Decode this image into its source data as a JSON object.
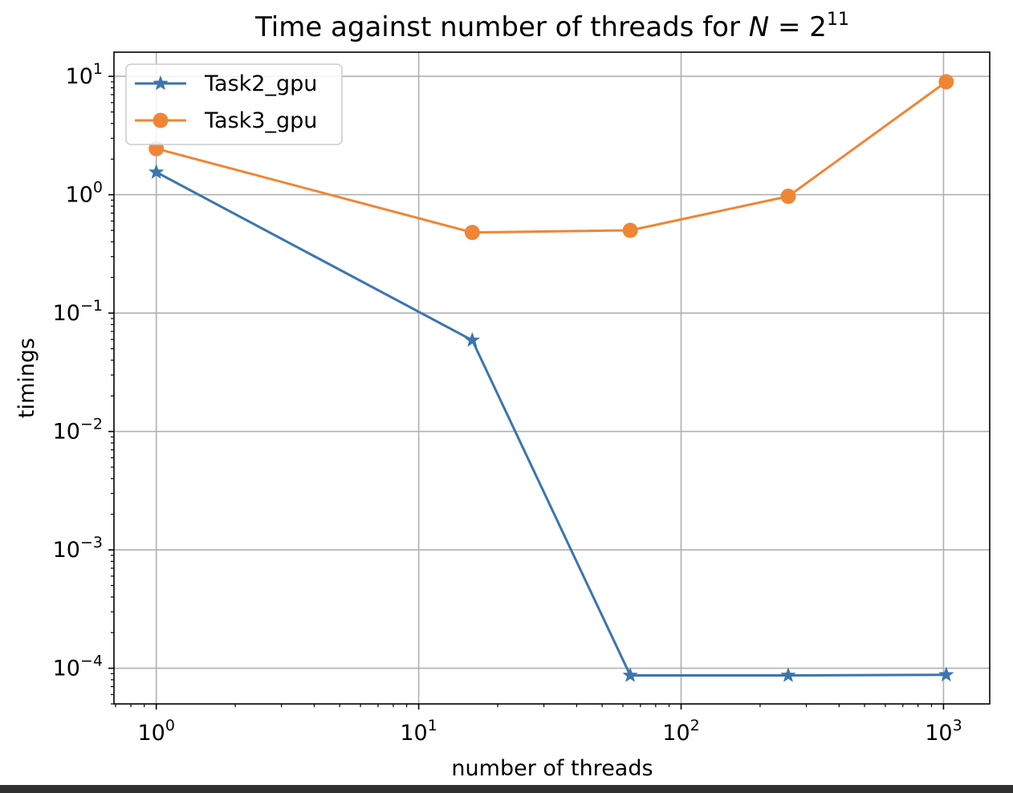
{
  "chart_data": {
    "type": "line",
    "title": "Time against number of threads for ",
    "title_math": {
      "var": "N",
      "rel": " = 2",
      "exp": "11"
    },
    "xlabel": "number of threads",
    "ylabel": "timings",
    "xscale": "log",
    "yscale": "log",
    "xlim": [
      0.69,
      1500
    ],
    "ylim": [
      5e-05,
      16
    ],
    "grid": true,
    "legend_position": "top-left",
    "x_ticks": [
      {
        "base": "10",
        "exp": "0",
        "value": 1
      },
      {
        "base": "10",
        "exp": "1",
        "value": 10
      },
      {
        "base": "10",
        "exp": "2",
        "value": 100
      },
      {
        "base": "10",
        "exp": "3",
        "value": 1000
      }
    ],
    "y_ticks": [
      {
        "base": "10",
        "exp": "1",
        "value": 10
      },
      {
        "base": "10",
        "exp": "0",
        "value": 1
      },
      {
        "base": "10",
        "exp": "−1",
        "value": 0.1
      },
      {
        "base": "10",
        "exp": "−2",
        "value": 0.01
      },
      {
        "base": "10",
        "exp": "−3",
        "value": 0.001
      },
      {
        "base": "10",
        "exp": "−4",
        "value": 0.0001
      }
    ],
    "x": [
      1,
      16,
      64,
      256,
      1024
    ],
    "series": [
      {
        "name": "Task2_gpu",
        "marker": "star",
        "color": "#3a75af",
        "values": [
          1.55,
          0.059,
          8.7e-05,
          8.7e-05,
          8.8e-05
        ]
      },
      {
        "name": "Task3_gpu",
        "marker": "circle",
        "color": "#ef8636",
        "values": [
          2.45,
          0.48,
          0.5,
          0.97,
          9.0
        ]
      }
    ]
  }
}
